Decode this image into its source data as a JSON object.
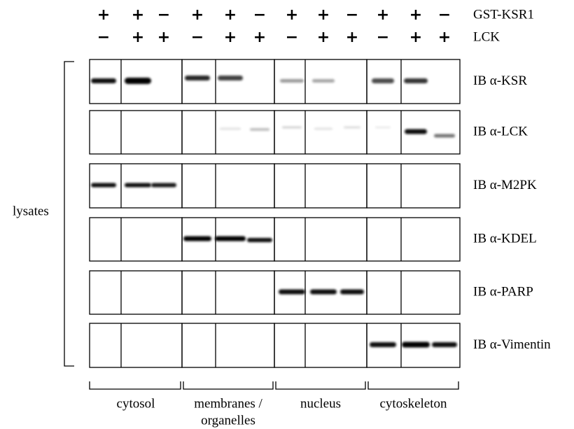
{
  "header": {
    "rows": [
      {
        "label": "GST-KSR1",
        "signs": [
          "+",
          "+",
          "−",
          "+",
          "+",
          "−",
          "+",
          "+",
          "−",
          "+",
          "+",
          "−"
        ]
      },
      {
        "label": "LCK",
        "signs": [
          "−",
          "+",
          "+",
          "−",
          "+",
          "+",
          "−",
          "+",
          "+",
          "−",
          "+",
          "+"
        ]
      }
    ]
  },
  "side_label": "lysates",
  "blots": [
    {
      "label": "IB α-KSR"
    },
    {
      "label": "IB α-LCK"
    },
    {
      "label": "IB α-M2PK"
    },
    {
      "label": "IB α-KDEL"
    },
    {
      "label": "IB α-PARP"
    },
    {
      "label": "IB α-Vimentin"
    }
  ],
  "fractions": [
    {
      "lines": [
        "cytosol"
      ]
    },
    {
      "lines": [
        "membranes /",
        "organelles"
      ]
    },
    {
      "lines": [
        "nucleus"
      ]
    },
    {
      "lines": [
        "cytoskeleton"
      ]
    }
  ]
}
